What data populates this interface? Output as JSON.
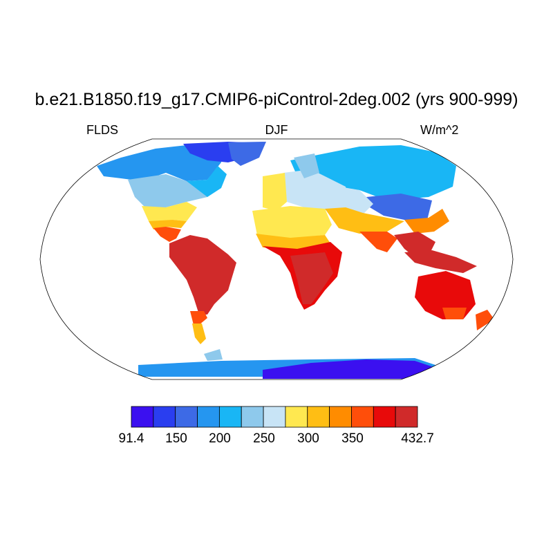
{
  "title": "b.e21.B1850.f19_g17.CMIP6-piControl-2deg.002 (yrs 900-999)",
  "variable": "FLDS",
  "season": "DJF",
  "units": "W/m^2",
  "colorbar": {
    "colors": [
      "#3b10f0",
      "#2a3ef0",
      "#3d6ae6",
      "#2596f0",
      "#19b6f5",
      "#8ec9ec",
      "#c8e4f6",
      "#ffe850",
      "#ffbe14",
      "#ff8c00",
      "#ff4e0a",
      "#e80a0a",
      "#d02a2a"
    ],
    "tick_labels": [
      "91.4",
      "150",
      "200",
      "250",
      "300",
      "350",
      "432.7"
    ]
  }
}
